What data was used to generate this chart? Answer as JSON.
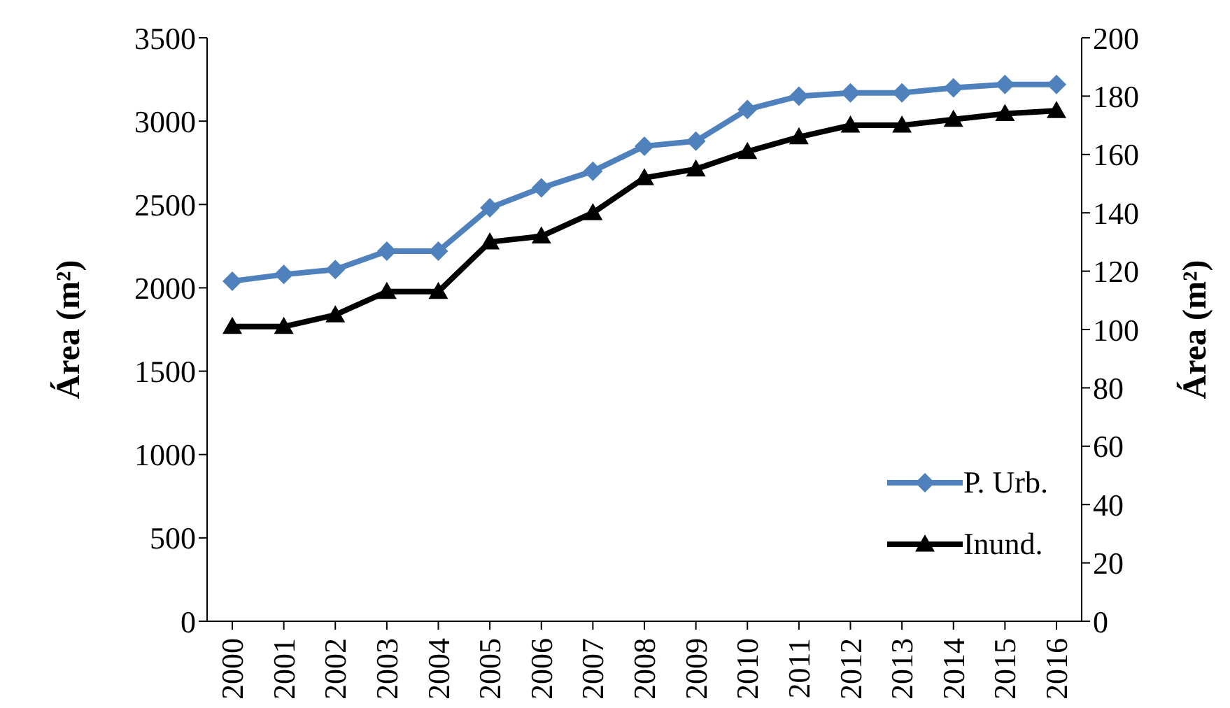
{
  "chart_data": {
    "type": "line",
    "categories": [
      "2000",
      "2001",
      "2002",
      "2003",
      "2004",
      "2005",
      "2006",
      "2007",
      "2008",
      "2009",
      "2010",
      "2011",
      "2012",
      "2013",
      "2014",
      "2015",
      "2016"
    ],
    "ylabel": "Área (m²)",
    "y2label": "Área (m²)",
    "ylim": [
      0,
      3500
    ],
    "yticks": [
      0,
      500,
      1000,
      1500,
      2000,
      2500,
      3000,
      3500
    ],
    "y2lim": [
      0,
      200
    ],
    "y2ticks": [
      0,
      20,
      40,
      60,
      80,
      100,
      120,
      140,
      160,
      180,
      200
    ],
    "legend": "bottom right",
    "series": [
      {
        "name": "P. Urb.",
        "color": "#4f81bd",
        "marker": "diamond",
        "values": [
          2040,
          2080,
          2110,
          2220,
          2220,
          2480,
          2600,
          2700,
          2850,
          2880,
          3070,
          3150,
          3170,
          3170,
          3200,
          3220,
          3220
        ]
      },
      {
        "name": "Inund.",
        "color": "#000000",
        "marker": "triangle",
        "axis": "y2",
        "values": [
          101,
          101,
          105,
          113,
          113,
          130,
          132,
          140,
          152,
          155,
          161,
          166,
          170,
          170,
          172,
          174,
          175
        ]
      }
    ]
  }
}
